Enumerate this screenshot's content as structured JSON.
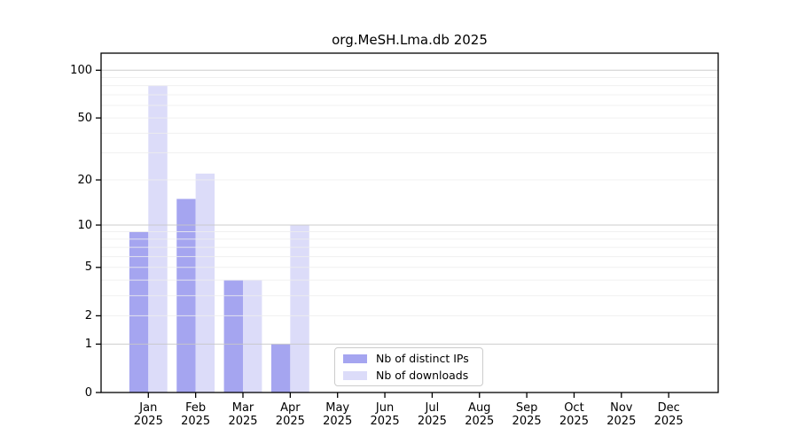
{
  "figure": {
    "background": "#ffffff"
  },
  "chart_data": {
    "type": "bar",
    "title": "org.MeSH.Lma.db 2025",
    "scale": "log1p",
    "categories": [
      "Jan",
      "Feb",
      "Mar",
      "Apr",
      "May",
      "Jun",
      "Jul",
      "Aug",
      "Sep",
      "Oct",
      "Nov",
      "Dec"
    ],
    "category_year": "2025",
    "series": [
      {
        "name": "Nb of distinct IPs",
        "color": "#a5a5f0",
        "values": [
          9,
          15,
          4,
          1,
          0,
          0,
          0,
          0,
          0,
          0,
          0,
          0
        ]
      },
      {
        "name": "Nb of downloads",
        "color": "#dcdcf9",
        "values": [
          80,
          22,
          4,
          10,
          0,
          0,
          0,
          0,
          0,
          0,
          0,
          0
        ]
      }
    ],
    "xlabel": "",
    "ylabel": "",
    "ylim": [
      0,
      128
    ],
    "y_ticks_labeled": [
      100,
      50,
      20,
      10,
      5,
      2,
      1,
      0
    ],
    "y_gridlines_major": [
      1,
      10,
      100
    ],
    "y_gridlines_minor": [
      2,
      3,
      4,
      5,
      6,
      7,
      8,
      9,
      20,
      30,
      40,
      50,
      60,
      70,
      80,
      90
    ],
    "grid": true,
    "legend_position": "bottom-center"
  },
  "legend": {
    "items": [
      {
        "label": "Nb of distinct IPs",
        "color": "#a5a5f0"
      },
      {
        "label": "Nb of downloads",
        "color": "#dcdcf9"
      }
    ]
  },
  "colors": {
    "spine": "#000000",
    "grid_major": "#c8c8c8",
    "grid_minor": "#ededed",
    "tick": "#000000",
    "text": "#000000",
    "legend_border": "#cccccc"
  }
}
